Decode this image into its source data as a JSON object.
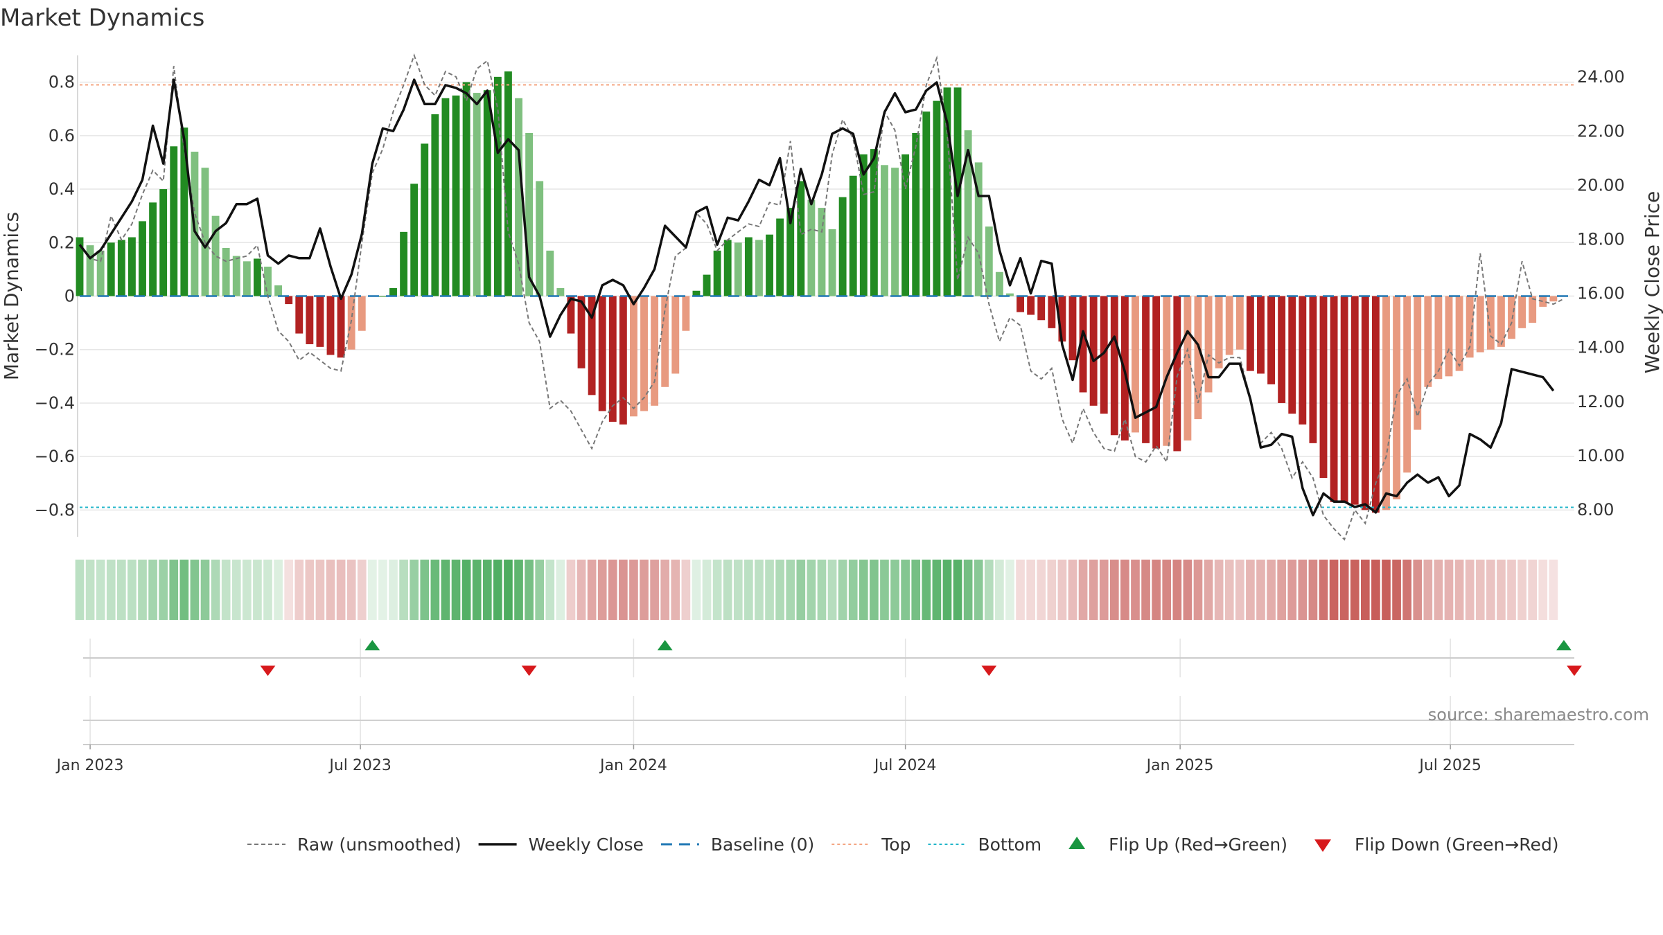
{
  "chart_data": {
    "type": "bar",
    "title": "Market Dynamics",
    "ylabel": "Market Dynamics",
    "y2label": "Weekly Close Price",
    "ylim": [
      -0.9,
      0.9
    ],
    "y2lim": [
      7.0,
      24.8
    ],
    "yticks": [
      0.8,
      0.6,
      0.4,
      0.2,
      0,
      -0.2,
      -0.4,
      -0.6,
      -0.8
    ],
    "yticklabels": [
      "0.8",
      "0.6",
      "0.4",
      "0.2",
      "0",
      "−0.2",
      "−0.4",
      "−0.6",
      "−0.8"
    ],
    "y2ticks": [
      24,
      22,
      20,
      18,
      16,
      14,
      12,
      10,
      8
    ],
    "y2ticklabels": [
      "24.00",
      "22.00",
      "20.00",
      "18.00",
      "16.00",
      "14.00",
      "12.00",
      "10.00",
      "8.00"
    ],
    "x_range": [
      "2022-12-26",
      "2025-09-22"
    ],
    "xticks": [
      {
        "date": "2023-01-02",
        "label": "Jan 2023"
      },
      {
        "date": "2023-07-02",
        "label": "Jul 2023"
      },
      {
        "date": "2024-01-01",
        "label": "Jan 2024"
      },
      {
        "date": "2024-07-01",
        "label": "Jul 2024"
      },
      {
        "date": "2025-01-01",
        "label": "Jan 2025"
      },
      {
        "date": "2025-07-01",
        "label": "Jul 2025"
      }
    ],
    "grid": true,
    "legend_position": "bottom",
    "source_note": "source: sharemaestro.com",
    "weeks_start": "2022-12-26",
    "dynamics": [
      0.22,
      0.19,
      0.17,
      0.2,
      0.21,
      0.22,
      0.28,
      0.35,
      0.4,
      0.56,
      0.63,
      0.54,
      0.48,
      0.3,
      0.18,
      0.15,
      0.13,
      0.14,
      0.11,
      0.04,
      -0.03,
      -0.14,
      -0.18,
      -0.19,
      -0.22,
      -0.23,
      -0.2,
      -0.13,
      0.0,
      0.0,
      0.03,
      0.24,
      0.42,
      0.57,
      0.68,
      0.74,
      0.75,
      0.8,
      0.76,
      0.77,
      0.82,
      0.84,
      0.74,
      0.61,
      0.43,
      0.17,
      0.03,
      -0.14,
      -0.27,
      -0.37,
      -0.43,
      -0.47,
      -0.48,
      -0.45,
      -0.43,
      -0.41,
      -0.34,
      -0.29,
      -0.13,
      0.02,
      0.08,
      0.17,
      0.21,
      0.2,
      0.22,
      0.21,
      0.23,
      0.29,
      0.33,
      0.43,
      0.36,
      0.33,
      0.25,
      0.37,
      0.45,
      0.53,
      0.55,
      0.49,
      0.48,
      0.53,
      0.61,
      0.69,
      0.73,
      0.78,
      0.78,
      0.62,
      0.5,
      0.26,
      0.09,
      0.01,
      -0.06,
      -0.07,
      -0.09,
      -0.12,
      -0.17,
      -0.24,
      -0.36,
      -0.41,
      -0.44,
      -0.52,
      -0.54,
      -0.51,
      -0.55,
      -0.57,
      -0.56,
      -0.58,
      -0.54,
      -0.46,
      -0.36,
      -0.27,
      -0.22,
      -0.2,
      -0.28,
      -0.29,
      -0.33,
      -0.4,
      -0.44,
      -0.48,
      -0.55,
      -0.68,
      -0.77,
      -0.77,
      -0.78,
      -0.8,
      -0.81,
      -0.8,
      -0.76,
      -0.66,
      -0.5,
      -0.34,
      -0.31,
      -0.3,
      -0.28,
      -0.23,
      -0.21,
      -0.2,
      -0.19,
      -0.16,
      -0.12,
      -0.1,
      -0.04,
      -0.02
    ],
    "weekly_close": [
      17.8,
      17.3,
      17.6,
      18.2,
      18.8,
      19.4,
      20.2,
      22.2,
      20.8,
      23.9,
      21.7,
      18.3,
      17.7,
      18.3,
      18.6,
      19.3,
      19.3,
      19.5,
      17.4,
      17.1,
      17.4,
      17.3,
      17.3,
      18.4,
      17.0,
      15.8,
      16.7,
      18.2,
      20.8,
      22.1,
      22.0,
      22.8,
      23.9,
      23.0,
      23.0,
      23.7,
      23.6,
      23.4,
      23.0,
      23.5,
      21.2,
      21.7,
      21.3,
      16.6,
      15.9,
      14.4,
      15.2,
      15.8,
      15.7,
      15.1,
      16.3,
      16.5,
      16.3,
      15.6,
      16.2,
      16.9,
      18.5,
      18.1,
      17.7,
      19.0,
      19.2,
      17.8,
      18.8,
      18.7,
      19.4,
      20.2,
      20.0,
      21.0,
      18.6,
      20.6,
      19.3,
      20.4,
      21.9,
      22.1,
      21.9,
      20.4,
      21.0,
      22.7,
      23.4,
      22.7,
      22.8,
      23.5,
      23.8,
      22.3,
      19.6,
      21.3,
      19.6,
      19.6,
      17.6,
      16.3,
      17.3,
      16.0,
      17.2,
      17.1,
      14.1,
      12.8,
      14.6,
      13.5,
      13.8,
      14.4,
      13.1,
      11.4,
      11.6,
      11.8,
      12.9,
      13.8,
      14.6,
      14.1,
      12.9,
      12.9,
      13.4,
      13.4,
      12.1,
      10.3,
      10.4,
      10.8,
      10.7,
      8.8,
      7.8,
      8.6,
      8.3,
      8.3,
      8.1,
      8.2,
      7.9,
      8.6,
      8.5,
      9.0,
      9.3,
      9.0,
      9.2,
      8.5,
      8.9,
      10.8,
      10.6,
      10.3,
      11.2,
      13.2,
      13.1,
      13.0,
      12.9,
      12.4
    ],
    "raw": [
      0.19,
      0.14,
      0.13,
      0.3,
      0.21,
      0.27,
      0.38,
      0.47,
      0.43,
      0.86,
      0.55,
      0.31,
      0.2,
      0.15,
      0.13,
      0.14,
      0.15,
      0.19,
      0.0,
      -0.13,
      -0.17,
      -0.24,
      -0.21,
      -0.24,
      -0.27,
      -0.28,
      -0.09,
      0.2,
      0.46,
      0.55,
      0.69,
      0.79,
      0.9,
      0.79,
      0.75,
      0.84,
      0.82,
      0.73,
      0.85,
      0.88,
      0.7,
      0.24,
      0.12,
      -0.1,
      -0.17,
      -0.42,
      -0.39,
      -0.43,
      -0.5,
      -0.57,
      -0.47,
      -0.41,
      -0.38,
      -0.42,
      -0.38,
      -0.32,
      -0.05,
      0.15,
      0.18,
      0.31,
      0.27,
      0.17,
      0.21,
      0.24,
      0.27,
      0.26,
      0.35,
      0.34,
      0.58,
      0.23,
      0.25,
      0.24,
      0.53,
      0.66,
      0.59,
      0.38,
      0.39,
      0.69,
      0.62,
      0.4,
      0.56,
      0.79,
      0.89,
      0.61,
      0.06,
      0.22,
      0.16,
      -0.03,
      -0.17,
      -0.08,
      -0.11,
      -0.28,
      -0.31,
      -0.27,
      -0.46,
      -0.55,
      -0.42,
      -0.51,
      -0.57,
      -0.58,
      -0.46,
      -0.6,
      -0.62,
      -0.56,
      -0.62,
      -0.3,
      -0.2,
      -0.4,
      -0.22,
      -0.25,
      -0.23,
      -0.23,
      -0.38,
      -0.55,
      -0.51,
      -0.57,
      -0.68,
      -0.62,
      -0.68,
      -0.82,
      -0.87,
      -0.91,
      -0.8,
      -0.85,
      -0.7,
      -0.6,
      -0.37,
      -0.31,
      -0.45,
      -0.33,
      -0.28,
      -0.2,
      -0.26,
      -0.19,
      0.16,
      -0.15,
      -0.18,
      -0.1,
      0.13,
      -0.01,
      -0.02,
      -0.03,
      -0.01
    ],
    "baseline": 0,
    "top_level": 0.79,
    "bottom_level": -0.79,
    "flip_up_dates": [
      "2023-07-10",
      "2024-01-22",
      "2025-09-15"
    ],
    "flip_down_dates": [
      "2023-05-01",
      "2023-10-23",
      "2024-08-26",
      "2025-09-22"
    ],
    "colors": {
      "strong_green": "#228b22",
      "light_green": "#7fc07f",
      "strong_red": "#b22222",
      "light_red": "#e89a80",
      "price_line": "#111111",
      "raw_line": "#777777",
      "baseline": "#1f77b4",
      "top": "#f4a582",
      "bottom": "#20b5c9",
      "flip_up": "#1a9641",
      "flip_down": "#d7191c",
      "grid": "#e6e6e6"
    },
    "legend": [
      {
        "label": "Raw (unsmoothed)",
        "key": "raw",
        "icon": "dashed-line-gray"
      },
      {
        "label": "Weekly Close",
        "key": "close",
        "icon": "solid-line-black"
      },
      {
        "label": "Baseline (0)",
        "key": "baseline",
        "icon": "dashed-line-blue"
      },
      {
        "label": "Top",
        "key": "top",
        "icon": "dotted-line-orange"
      },
      {
        "label": "Bottom",
        "key": "bottom",
        "icon": "dotted-line-cyan"
      },
      {
        "label": "Flip Up (Red→Green)",
        "key": "flipup",
        "icon": "triangle-up-green"
      },
      {
        "label": "Flip Down (Green→Red)",
        "key": "flipdown",
        "icon": "triangle-down-red"
      }
    ]
  }
}
